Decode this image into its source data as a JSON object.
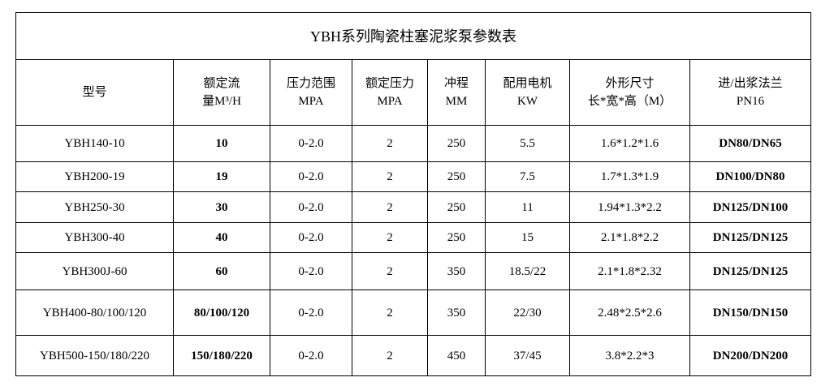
{
  "title": "YBH系列陶瓷柱塞泥浆泵参数表",
  "headers": [
    {
      "line1": "型号",
      "line2": ""
    },
    {
      "line1": "额定流",
      "line2": "量M³/H"
    },
    {
      "line1": "压力范围",
      "line2": "MPA"
    },
    {
      "line1": "额定压力",
      "line2": "MPA"
    },
    {
      "line1": "冲程",
      "line2": "MM"
    },
    {
      "line1": "配用电机",
      "line2": "KW"
    },
    {
      "line1": "外形尺寸",
      "line2": "长*宽*高（M）"
    },
    {
      "line1": "进/出浆法兰",
      "line2": "PN16"
    }
  ],
  "rows": [
    [
      "YBH140-10",
      "10",
      "0-2.0",
      "2",
      "250",
      "5.5",
      "1.6*1.2*1.6",
      "DN80/DN65"
    ],
    [
      "YBH200-19",
      "19",
      "0-2.0",
      "2",
      "250",
      "7.5",
      "1.7*1.3*1.9",
      "DN100/DN80"
    ],
    [
      "YBH250-30",
      "30",
      "0-2.0",
      "2",
      "250",
      "11",
      "1.94*1.3*2.2",
      "DN125/DN100"
    ],
    [
      "YBH300-40",
      "40",
      "0-2.0",
      "2",
      "250",
      "15",
      "2.1*1.8*2.2",
      "DN125/DN125"
    ],
    [
      "YBH300J-60",
      "60",
      "0-2.0",
      "2",
      "350",
      "18.5/22",
      "2.1*1.8*2.32",
      "DN125/DN125"
    ],
    [
      "YBH400-80/100/120",
      "80/100/120",
      "0-2.0",
      "2",
      "350",
      "22/30",
      "2.48*2.5*2.6",
      "DN150/DN150"
    ],
    [
      "YBH500-150/180/220",
      "150/180/220",
      "0-2.0",
      "2",
      "450",
      "37/45",
      "3.8*2.2*3",
      "DN200/DN200"
    ]
  ]
}
